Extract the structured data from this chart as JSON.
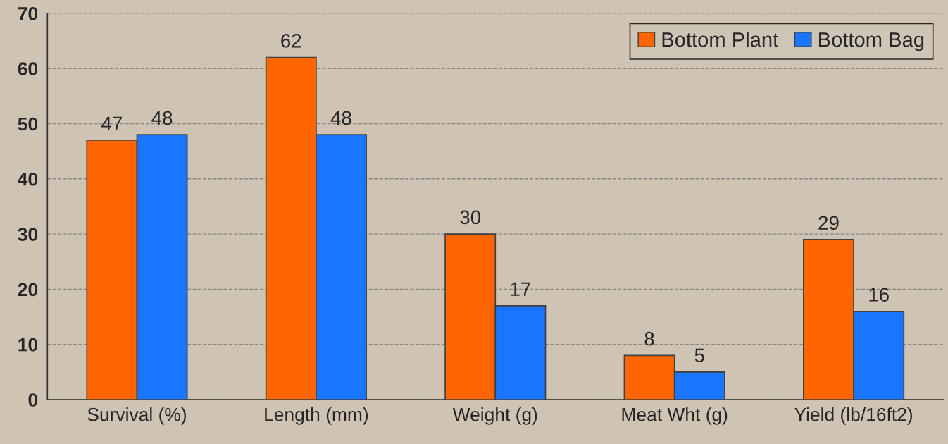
{
  "chart_data": {
    "type": "bar",
    "categories": [
      "Survival (%)",
      "Length (mm)",
      "Weight (g)",
      "Meat Wht (g)",
      "Yield (lb/16ft2)"
    ],
    "series": [
      {
        "name": "Bottom Plant",
        "color": "#ff6600",
        "values": [
          47,
          62,
          30,
          8,
          29
        ]
      },
      {
        "name": "Bottom Bag",
        "color": "#1a75ff",
        "values": [
          48,
          48,
          17,
          5,
          16
        ]
      }
    ],
    "ylim": [
      0,
      70
    ],
    "yticks": [
      0,
      10,
      20,
      30,
      40,
      50,
      60,
      70
    ],
    "grid": "y",
    "legend": "top right",
    "data_labels": true
  }
}
